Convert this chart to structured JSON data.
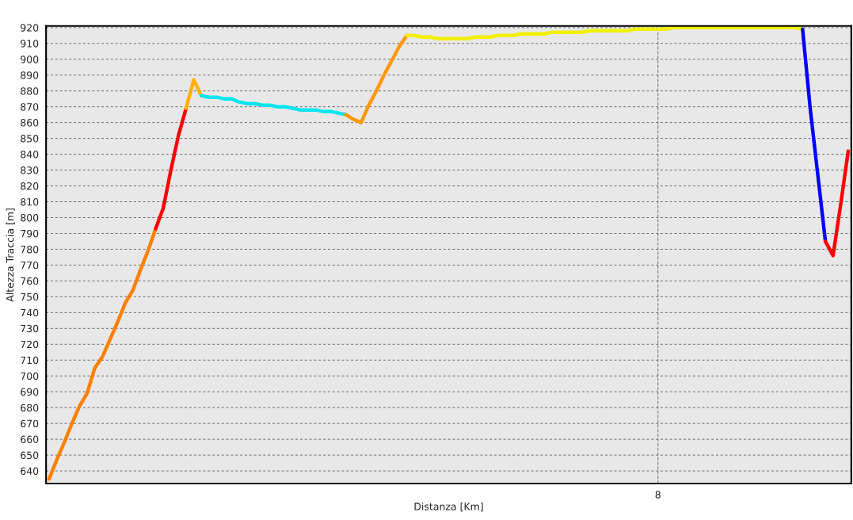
{
  "chart_data": {
    "type": "line",
    "xlabel": "Distanza [Km]",
    "ylabel": "Altezza Traccia [m]",
    "categories": [
      null,
      null,
      null,
      null,
      null,
      null,
      null,
      null,
      null,
      null,
      null,
      null,
      null,
      null,
      null,
      null,
      null,
      null,
      null,
      null,
      null,
      null,
      null,
      null,
      null,
      null,
      null,
      null,
      null,
      null,
      null,
      null,
      null,
      null,
      null,
      null,
      null,
      null,
      null,
      null,
      null,
      null,
      null,
      null,
      null,
      null,
      null,
      null,
      null,
      null,
      null,
      null,
      null,
      null,
      null,
      null,
      null,
      null,
      null,
      null,
      null,
      null,
      null,
      null,
      null,
      null,
      null,
      null,
      null,
      null,
      null,
      null,
      null,
      null,
      null,
      null,
      null,
      null,
      null,
      null,
      "8",
      null,
      null,
      null,
      null,
      null,
      null,
      null,
      null,
      null,
      null,
      null,
      null,
      null,
      null,
      null,
      null,
      null,
      null,
      null,
      null,
      null,
      null,
      null,
      null,
      null
    ],
    "ylim": [
      632,
      921
    ],
    "yticks": [
      640,
      650,
      660,
      670,
      680,
      690,
      700,
      710,
      720,
      730,
      740,
      750,
      760,
      770,
      780,
      790,
      800,
      810,
      820,
      830,
      840,
      850,
      860,
      870,
      880,
      890,
      900,
      910,
      920
    ],
    "grid": "y",
    "line_style": "solid",
    "marker": "none",
    "ref_lines": [
      {
        "axis": "x",
        "value": "8",
        "label": null,
        "color": "#808080",
        "line_style": "dashed"
      }
    ],
    "series": [
      {
        "color": "#ff8000",
        "values": [
          635,
          647,
          658,
          670,
          681,
          689,
          705,
          712,
          723,
          734,
          746,
          754,
          767,
          779,
          793,
          null,
          null,
          null,
          null,
          null,
          null,
          null,
          null,
          null,
          null,
          null,
          null,
          null,
          null,
          null,
          null,
          null,
          null,
          null,
          null,
          null,
          null,
          null,
          null,
          null,
          null,
          null,
          null,
          null,
          null,
          null,
          null,
          null,
          null,
          null,
          null,
          null,
          null,
          null,
          null,
          null,
          null,
          null,
          null,
          null,
          null,
          null,
          null,
          null,
          null,
          null,
          null,
          null,
          null,
          null,
          null,
          null,
          null,
          null,
          null,
          null,
          null,
          null,
          null,
          null,
          null,
          null,
          null,
          null,
          null,
          null,
          null,
          null,
          null,
          null,
          null,
          null,
          null,
          null,
          null,
          null,
          null,
          null,
          null,
          null,
          null,
          null,
          null,
          null,
          null,
          null
        ]
      },
      {
        "color": "#ff0000",
        "values": [
          null,
          null,
          null,
          null,
          null,
          null,
          null,
          null,
          null,
          null,
          null,
          null,
          null,
          null,
          793,
          806,
          830,
          852,
          869,
          null,
          null,
          null,
          null,
          null,
          null,
          null,
          null,
          null,
          null,
          null,
          null,
          null,
          null,
          null,
          null,
          null,
          null,
          null,
          null,
          null,
          null,
          null,
          null,
          null,
          null,
          null,
          null,
          null,
          null,
          null,
          null,
          null,
          null,
          null,
          null,
          null,
          null,
          null,
          null,
          null,
          null,
          null,
          null,
          null,
          null,
          null,
          null,
          null,
          null,
          null,
          null,
          null,
          null,
          null,
          null,
          null,
          null,
          null,
          null,
          null,
          null,
          null,
          null,
          null,
          null,
          null,
          null,
          null,
          null,
          null,
          null,
          null,
          null,
          null,
          null,
          null,
          null,
          null,
          null,
          null,
          null,
          null,
          null,
          null,
          null,
          null
        ]
      },
      {
        "color": "#ffb000",
        "values": [
          null,
          null,
          null,
          null,
          null,
          null,
          null,
          null,
          null,
          null,
          null,
          null,
          null,
          null,
          null,
          null,
          null,
          null,
          869,
          887,
          877,
          null,
          null,
          null,
          null,
          null,
          null,
          null,
          null,
          null,
          null,
          null,
          null,
          null,
          null,
          null,
          null,
          null,
          null,
          null,
          null,
          null,
          null,
          null,
          null,
          null,
          null,
          null,
          null,
          null,
          null,
          null,
          null,
          null,
          null,
          null,
          null,
          null,
          null,
          null,
          null,
          null,
          null,
          null,
          null,
          null,
          null,
          null,
          null,
          null,
          null,
          null,
          null,
          null,
          null,
          null,
          null,
          null,
          null,
          null,
          null,
          null,
          null,
          null,
          null,
          null,
          null,
          null,
          null,
          null,
          null,
          null,
          null,
          null,
          null,
          null,
          null,
          null,
          null,
          null,
          null,
          null,
          null,
          null,
          null,
          null
        ]
      },
      {
        "color": "#00e5ee",
        "values": [
          null,
          null,
          null,
          null,
          null,
          null,
          null,
          null,
          null,
          null,
          null,
          null,
          null,
          null,
          null,
          null,
          null,
          null,
          null,
          null,
          877,
          876,
          876,
          875,
          875,
          873,
          872,
          872,
          871,
          871,
          870,
          870,
          869,
          868,
          868,
          868,
          867,
          867,
          866,
          865,
          null,
          null,
          null,
          null,
          null,
          null,
          null,
          null,
          null,
          null,
          null,
          null,
          null,
          null,
          null,
          null,
          null,
          null,
          null,
          null,
          null,
          null,
          null,
          null,
          null,
          null,
          null,
          null,
          null,
          null,
          null,
          null,
          null,
          null,
          null,
          null,
          null,
          null,
          null,
          null,
          null,
          null,
          null,
          null,
          null,
          null,
          null,
          null,
          null,
          null,
          null,
          null,
          null,
          null,
          null,
          null,
          null,
          null,
          null,
          null,
          null,
          null,
          null,
          null,
          null,
          null
        ]
      },
      {
        "color": "#ff9900",
        "values": [
          null,
          null,
          null,
          null,
          null,
          null,
          null,
          null,
          null,
          null,
          null,
          null,
          null,
          null,
          null,
          null,
          null,
          null,
          null,
          null,
          null,
          null,
          null,
          null,
          null,
          null,
          null,
          null,
          null,
          null,
          null,
          null,
          null,
          null,
          null,
          null,
          null,
          null,
          null,
          865,
          862,
          860,
          871,
          880,
          890,
          899,
          908,
          915,
          null,
          null,
          null,
          null,
          null,
          null,
          null,
          null,
          null,
          null,
          null,
          null,
          null,
          null,
          null,
          null,
          null,
          null,
          null,
          null,
          null,
          null,
          null,
          null,
          null,
          null,
          null,
          null,
          null,
          null,
          null,
          null,
          null,
          null,
          null,
          null,
          null,
          null,
          null,
          null,
          null,
          null,
          null,
          null,
          null,
          null,
          null,
          null,
          null,
          null,
          null,
          null,
          null,
          null,
          null,
          null,
          null,
          null
        ]
      },
      {
        "color": "#f0f000",
        "values": [
          null,
          null,
          null,
          null,
          null,
          null,
          null,
          null,
          null,
          null,
          null,
          null,
          null,
          null,
          null,
          null,
          null,
          null,
          null,
          null,
          null,
          null,
          null,
          null,
          null,
          null,
          null,
          null,
          null,
          null,
          null,
          null,
          null,
          null,
          null,
          null,
          null,
          null,
          null,
          null,
          null,
          null,
          null,
          null,
          null,
          null,
          null,
          915,
          915,
          914,
          914,
          913,
          913,
          913,
          913,
          913,
          914,
          914,
          914,
          915,
          915,
          915,
          916,
          916,
          916,
          916,
          917,
          917,
          917,
          917,
          917,
          918,
          918,
          918,
          918,
          918,
          918,
          919,
          919,
          919,
          919,
          919,
          920,
          920,
          920,
          920,
          920,
          920,
          920,
          920,
          920,
          920,
          920,
          920,
          920,
          920,
          920,
          920,
          920,
          919,
          null,
          null,
          null,
          null,
          null,
          null
        ]
      },
      {
        "color": "#0000ff",
        "values": [
          null,
          null,
          null,
          null,
          null,
          null,
          null,
          null,
          null,
          null,
          null,
          null,
          null,
          null,
          null,
          null,
          null,
          null,
          null,
          null,
          null,
          null,
          null,
          null,
          null,
          null,
          null,
          null,
          null,
          null,
          null,
          null,
          null,
          null,
          null,
          null,
          null,
          null,
          null,
          null,
          null,
          null,
          null,
          null,
          null,
          null,
          null,
          null,
          null,
          null,
          null,
          null,
          null,
          null,
          null,
          null,
          null,
          null,
          null,
          null,
          null,
          null,
          null,
          null,
          null,
          null,
          null,
          null,
          null,
          null,
          null,
          null,
          null,
          null,
          null,
          null,
          null,
          null,
          null,
          null,
          null,
          null,
          null,
          null,
          null,
          null,
          null,
          null,
          null,
          null,
          null,
          null,
          null,
          null,
          null,
          null,
          null,
          null,
          null,
          919,
          869,
          827,
          785,
          null,
          null,
          null
        ]
      },
      {
        "color": "#ff0000",
        "values": [
          null,
          null,
          null,
          null,
          null,
          null,
          null,
          null,
          null,
          null,
          null,
          null,
          null,
          null,
          null,
          null,
          null,
          null,
          null,
          null,
          null,
          null,
          null,
          null,
          null,
          null,
          null,
          null,
          null,
          null,
          null,
          null,
          null,
          null,
          null,
          null,
          null,
          null,
          null,
          null,
          null,
          null,
          null,
          null,
          null,
          null,
          null,
          null,
          null,
          null,
          null,
          null,
          null,
          null,
          null,
          null,
          null,
          null,
          null,
          null,
          null,
          null,
          null,
          null,
          null,
          null,
          null,
          null,
          null,
          null,
          null,
          null,
          null,
          null,
          null,
          null,
          null,
          null,
          null,
          null,
          null,
          null,
          null,
          null,
          null,
          null,
          null,
          null,
          null,
          null,
          null,
          null,
          null,
          null,
          null,
          null,
          null,
          null,
          null,
          null,
          null,
          null,
          785,
          776,
          808,
          842
        ]
      }
    ]
  }
}
